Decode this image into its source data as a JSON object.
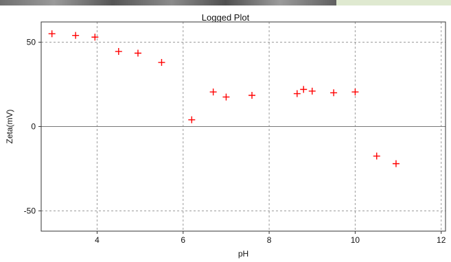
{
  "chart_data": {
    "type": "scatter",
    "title": "Logged Plot",
    "xlabel": "pH",
    "ylabel": "Zeta(mV)",
    "xlim": [
      2.7,
      12.1
    ],
    "ylim": [
      -62,
      62
    ],
    "xticks": [
      4,
      6,
      8,
      10,
      12
    ],
    "yticks": [
      50,
      0,
      -50
    ],
    "grid": true,
    "marker": "plus",
    "marker_color": "#ff0000",
    "series": [
      {
        "points": [
          {
            "x": 2.95,
            "y": 55
          },
          {
            "x": 3.5,
            "y": 54
          },
          {
            "x": 3.95,
            "y": 53
          },
          {
            "x": 4.5,
            "y": 44.5
          },
          {
            "x": 4.95,
            "y": 43.5
          },
          {
            "x": 5.5,
            "y": 38
          },
          {
            "x": 6.2,
            "y": 4
          },
          {
            "x": 6.7,
            "y": 20.5
          },
          {
            "x": 7.0,
            "y": 17.5
          },
          {
            "x": 7.6,
            "y": 18.5
          },
          {
            "x": 8.65,
            "y": 19.5
          },
          {
            "x": 8.8,
            "y": 22
          },
          {
            "x": 9.0,
            "y": 21
          },
          {
            "x": 9.5,
            "y": 20
          },
          {
            "x": 10.0,
            "y": 20.5
          },
          {
            "x": 10.5,
            "y": -17.5
          },
          {
            "x": 10.95,
            "y": -22
          }
        ]
      }
    ]
  }
}
